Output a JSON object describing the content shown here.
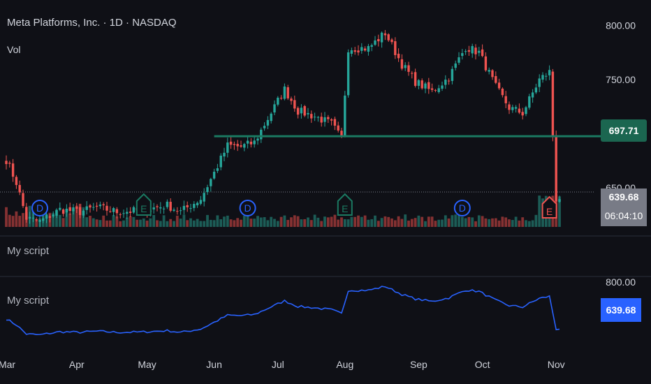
{
  "header": {
    "symbol_title": "Meta Platforms, Inc. · 1D · NASDAQ",
    "volume_label": "Vol"
  },
  "panes": {
    "script_label_1": "My script",
    "script_label_2": "My script"
  },
  "badges": {
    "level_line_value": "697.71",
    "last_price": "639.68",
    "countdown": "06:04:10",
    "script_value": "639.68",
    "script_axis_top": "800.00"
  },
  "colors": {
    "background": "#0f1016",
    "up": "#26a69a",
    "down": "#ef5350",
    "level_line": "#1b7a62",
    "script_line": "#2962ff",
    "event_dividend": "#2962ff",
    "event_earnings_up": "#1b7a62",
    "event_earnings_down": "#ef5350"
  },
  "chart_data": {
    "type": "candlestick",
    "title": "Meta Platforms, Inc. · 1D · NASDAQ",
    "price_axis_ticks": [
      "800.00",
      "750.00",
      "650.00"
    ],
    "price_range": [
      614,
      806
    ],
    "horizontal_level": 697.71,
    "last_price": 639.68,
    "x_ticks": [
      {
        "label": "Mar",
        "index": 0
      },
      {
        "label": "Apr",
        "index": 21
      },
      {
        "label": "May",
        "index": 42
      },
      {
        "label": "Jun",
        "index": 62
      },
      {
        "label": "Jul",
        "index": 81
      },
      {
        "label": "Aug",
        "index": 101
      },
      {
        "label": "Sep",
        "index": 123
      },
      {
        "label": "Oct",
        "index": 142
      },
      {
        "label": "Nov",
        "index": 164
      }
    ],
    "events": [
      {
        "type": "D",
        "index": 10
      },
      {
        "type": "E",
        "index": 41
      },
      {
        "type": "D",
        "index": 72
      },
      {
        "type": "E",
        "index": 101
      },
      {
        "type": "D",
        "index": 136
      },
      {
        "type": "E",
        "index": 162
      }
    ],
    "script_series_label": "My script",
    "script_axis_top": "800.00",
    "script_last_value": 639.68
  }
}
